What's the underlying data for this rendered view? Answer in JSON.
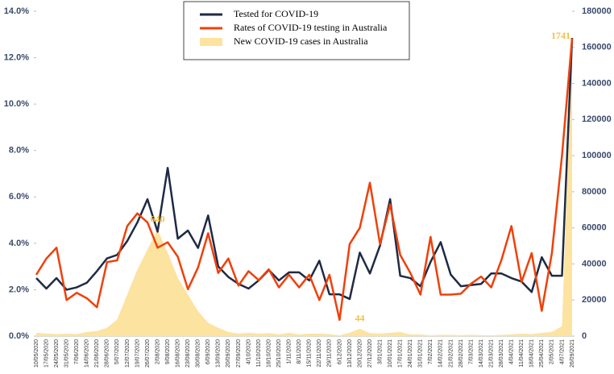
{
  "chart_data": {
    "type": "line",
    "categories": [
      "10/05/2020",
      "17/05/2020",
      "24/05/2020",
      "31/05/2020",
      "7/06/2020",
      "14/06/2020",
      "21/06/2020",
      "28/06/2020",
      "5/07/2020",
      "12/07/2020",
      "19/07/2020",
      "26/07/2020",
      "2/08/2020",
      "9/08/2020",
      "16/08/2020",
      "23/08/2020",
      "30/08/2020",
      "6/09/2020",
      "13/09/2020",
      "20/09/2020",
      "27/09/2020",
      "4/10/2020",
      "11/10/2020",
      "18/10/2020",
      "25/10/2020",
      "1/11/2020",
      "8/11/2020",
      "15/11/2020",
      "22/11/2020",
      "29/11/2020",
      "6/12/2020",
      "13/12/2020",
      "20/12/2020",
      "27/12/2020",
      "3/01/2021",
      "10/01/2021",
      "17/01/2021",
      "24/01/2021",
      "31/01/2021",
      "7/02/2021",
      "14/02/2021",
      "21/02/2021",
      "28/02/2021",
      "7/03/2021",
      "14/03/2021",
      "21/03/2021",
      "28/03/2021",
      "4/04/2021",
      "11/04/2021",
      "18/04/2021",
      "25/04/2021",
      "2/05/2021",
      "4/07/2021",
      "26/09/2021"
    ],
    "series": [
      {
        "name": "Tested for COVID-19",
        "color": "#1f2a44",
        "axis": "y",
        "values": [
          2.5,
          2.05,
          2.5,
          2.0,
          2.1,
          2.3,
          2.8,
          3.35,
          3.5,
          4.1,
          4.9,
          5.9,
          4.5,
          7.25,
          4.2,
          4.55,
          3.8,
          5.2,
          3.0,
          2.55,
          2.25,
          2.05,
          2.4,
          2.85,
          2.4,
          2.75,
          2.75,
          2.4,
          3.25,
          1.8,
          1.8,
          1.6,
          3.6,
          2.7,
          3.9,
          5.9,
          2.6,
          2.5,
          2.15,
          3.2,
          4.05,
          2.65,
          2.15,
          2.2,
          2.25,
          2.7,
          2.7,
          2.5,
          2.35,
          1.9,
          3.4,
          2.6,
          2.6,
          12.85
        ]
      },
      {
        "name": "Rates of COVID-19 testing in Australia",
        "color": "#f0400a",
        "axis": "y2",
        "values": [
          34000,
          43000,
          49000,
          20000,
          24000,
          21000,
          16000,
          41000,
          42000,
          61000,
          68000,
          63000,
          49000,
          52000,
          44000,
          26000,
          38000,
          57000,
          35000,
          43000,
          28000,
          36000,
          31000,
          37000,
          27000,
          34000,
          27000,
          34000,
          20000,
          34000,
          9000,
          51000,
          60000,
          85000,
          51000,
          73000,
          45000,
          35000,
          23000,
          55000,
          23000,
          23000,
          23500,
          29000,
          33000,
          27000,
          42000,
          61000,
          30000,
          46000,
          14000,
          46000,
          100000,
          165000
        ]
      },
      {
        "name": "New COVID-19 cases in Australia",
        "color": "#fde3a0",
        "axis": "y3",
        "kind": "area",
        "values": [
          20,
          15,
          12,
          15,
          12,
          25,
          30,
          50,
          100,
          250,
          400,
          520,
          640,
          500,
          350,
          250,
          150,
          80,
          50,
          25,
          15,
          20,
          15,
          18,
          10,
          20,
          10,
          15,
          15,
          12,
          5,
          20,
          44,
          18,
          15,
          20,
          25,
          10,
          10,
          5,
          8,
          8,
          6,
          8,
          6,
          5,
          8,
          10,
          15,
          12,
          20,
          25,
          60,
          1741
        ],
        "value_labels": [
          null,
          null,
          null,
          null,
          null,
          null,
          null,
          null,
          null,
          null,
          null,
          null,
          "640",
          null,
          null,
          null,
          null,
          null,
          null,
          null,
          null,
          null,
          null,
          null,
          null,
          null,
          null,
          null,
          null,
          null,
          null,
          null,
          "44",
          null,
          null,
          null,
          null,
          null,
          null,
          null,
          null,
          null,
          null,
          null,
          null,
          null,
          null,
          null,
          null,
          null,
          null,
          null,
          null,
          "1741"
        ]
      }
    ],
    "ylim": [
      0,
      14
    ],
    "yticks": [
      {
        "value": 0,
        "label": "0.0%"
      },
      {
        "value": 2,
        "label": "2.0%"
      },
      {
        "value": 4,
        "label": "4.0%"
      },
      {
        "value": 6,
        "label": "6.0%"
      },
      {
        "value": 8,
        "label": "8.0%"
      },
      {
        "value": 10,
        "label": "10.0%"
      },
      {
        "value": 12,
        "label": "12.0%"
      },
      {
        "value": 14,
        "label": "14.0%"
      }
    ],
    "y2lim": [
      0,
      180000
    ],
    "y2ticks": [
      0,
      20000,
      40000,
      60000,
      80000,
      100000,
      120000,
      140000,
      160000,
      180000
    ],
    "y3lim": [
      0,
      1950
    ],
    "legend": "top"
  }
}
